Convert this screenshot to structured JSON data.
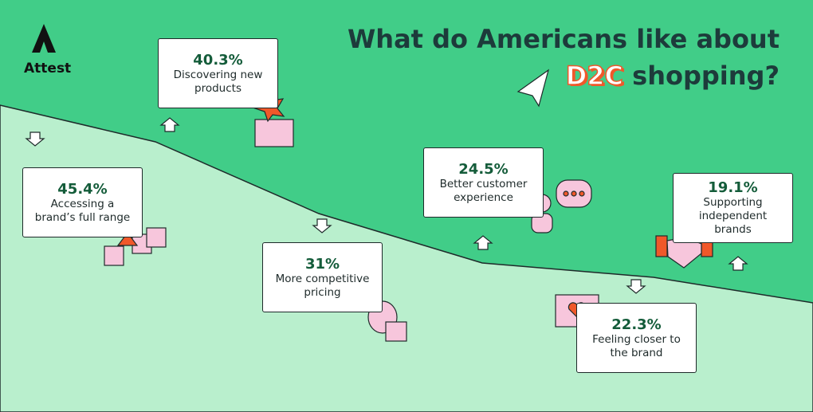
{
  "header": {
    "brand": "Attest",
    "title_line1": "What do Americans like about",
    "title_highlight": "D2C",
    "title_end": "shopping?"
  },
  "cards": [
    {
      "value": "45.4%",
      "label": "Accessing a brand’s full range"
    },
    {
      "value": "40.3%",
      "label": "Discovering new products"
    },
    {
      "value": "31%",
      "label": "More competitive pricing"
    },
    {
      "value": "24.5%",
      "label": "Better customer experience"
    },
    {
      "value": "22.3%",
      "label": "Feeling closer to the brand"
    },
    {
      "value": "19.1%",
      "label": "Supporting independent brands"
    }
  ]
}
